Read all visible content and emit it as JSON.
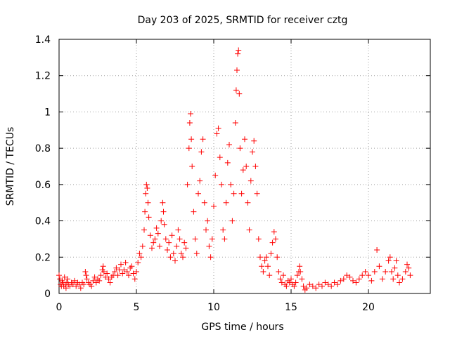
{
  "chart_data": {
    "type": "scatter",
    "title": "Day 203 of 2025, SRMTID for receiver cztg",
    "xlabel": "GPS time / hours",
    "ylabel": "SRMTID / TECUs",
    "xlim": [
      0,
      24
    ],
    "ylim": [
      0,
      1.4
    ],
    "xticks": [
      0,
      5,
      10,
      15,
      20
    ],
    "xtick_labels": [
      "0",
      "5",
      "10",
      "15",
      "20"
    ],
    "yticks": [
      0,
      0.2,
      0.4,
      0.6,
      0.8,
      1.0,
      1.2,
      1.4
    ],
    "ytick_labels": [
      "0",
      "0.2",
      "0.4",
      "0.6",
      "0.8",
      "1",
      "1.2",
      "1.4"
    ],
    "grid": true,
    "marker": "+",
    "series": [
      {
        "name": "SRMTID",
        "color": "#ff0000",
        "points": [
          [
            0.0,
            0.1
          ],
          [
            0.05,
            0.08
          ],
          [
            0.1,
            0.05
          ],
          [
            0.15,
            0.04
          ],
          [
            0.2,
            0.07
          ],
          [
            0.25,
            0.06
          ],
          [
            0.3,
            0.04
          ],
          [
            0.35,
            0.09
          ],
          [
            0.4,
            0.05
          ],
          [
            0.45,
            0.03
          ],
          [
            0.5,
            0.06
          ],
          [
            0.55,
            0.08
          ],
          [
            0.6,
            0.05
          ],
          [
            0.7,
            0.04
          ],
          [
            0.8,
            0.06
          ],
          [
            0.9,
            0.05
          ],
          [
            1.0,
            0.07
          ],
          [
            1.1,
            0.04
          ],
          [
            1.2,
            0.06
          ],
          [
            1.3,
            0.05
          ],
          [
            1.4,
            0.03
          ],
          [
            1.5,
            0.06
          ],
          [
            1.6,
            0.05
          ],
          [
            1.7,
            0.12
          ],
          [
            1.75,
            0.1
          ],
          [
            1.8,
            0.08
          ],
          [
            1.9,
            0.06
          ],
          [
            2.0,
            0.05
          ],
          [
            2.1,
            0.04
          ],
          [
            2.2,
            0.07
          ],
          [
            2.3,
            0.09
          ],
          [
            2.4,
            0.06
          ],
          [
            2.5,
            0.08
          ],
          [
            2.6,
            0.07
          ],
          [
            2.7,
            0.1
          ],
          [
            2.8,
            0.13
          ],
          [
            2.85,
            0.15
          ],
          [
            2.9,
            0.12
          ],
          [
            3.0,
            0.09
          ],
          [
            3.1,
            0.11
          ],
          [
            3.2,
            0.08
          ],
          [
            3.3,
            0.06
          ],
          [
            3.4,
            0.09
          ],
          [
            3.5,
            0.1
          ],
          [
            3.6,
            0.12
          ],
          [
            3.7,
            0.14
          ],
          [
            3.8,
            0.1
          ],
          [
            3.9,
            0.13
          ],
          [
            4.0,
            0.16
          ],
          [
            4.1,
            0.11
          ],
          [
            4.2,
            0.13
          ],
          [
            4.3,
            0.17
          ],
          [
            4.4,
            0.12
          ],
          [
            4.5,
            0.1
          ],
          [
            4.6,
            0.14
          ],
          [
            4.7,
            0.15
          ],
          [
            4.8,
            0.11
          ],
          [
            4.9,
            0.08
          ],
          [
            5.0,
            0.12
          ],
          [
            5.1,
            0.17
          ],
          [
            5.2,
            0.22
          ],
          [
            5.3,
            0.2
          ],
          [
            5.4,
            0.26
          ],
          [
            5.5,
            0.35
          ],
          [
            5.55,
            0.45
          ],
          [
            5.6,
            0.55
          ],
          [
            5.65,
            0.6
          ],
          [
            5.7,
            0.58
          ],
          [
            5.75,
            0.5
          ],
          [
            5.8,
            0.42
          ],
          [
            5.9,
            0.32
          ],
          [
            6.0,
            0.25
          ],
          [
            6.1,
            0.28
          ],
          [
            6.2,
            0.3
          ],
          [
            6.3,
            0.36
          ],
          [
            6.4,
            0.33
          ],
          [
            6.5,
            0.26
          ],
          [
            6.6,
            0.4
          ],
          [
            6.7,
            0.5
          ],
          [
            6.75,
            0.45
          ],
          [
            6.8,
            0.38
          ],
          [
            6.9,
            0.3
          ],
          [
            7.0,
            0.24
          ],
          [
            7.1,
            0.28
          ],
          [
            7.2,
            0.2
          ],
          [
            7.3,
            0.32
          ],
          [
            7.4,
            0.22
          ],
          [
            7.5,
            0.18
          ],
          [
            7.6,
            0.26
          ],
          [
            7.7,
            0.35
          ],
          [
            7.8,
            0.3
          ],
          [
            7.9,
            0.22
          ],
          [
            8.0,
            0.2
          ],
          [
            8.1,
            0.28
          ],
          [
            8.2,
            0.25
          ],
          [
            8.3,
            0.6
          ],
          [
            8.4,
            0.8
          ],
          [
            8.45,
            0.94
          ],
          [
            8.5,
            0.99
          ],
          [
            8.55,
            0.85
          ],
          [
            8.6,
            0.7
          ],
          [
            8.7,
            0.45
          ],
          [
            8.8,
            0.3
          ],
          [
            8.9,
            0.22
          ],
          [
            9.0,
            0.55
          ],
          [
            9.1,
            0.62
          ],
          [
            9.2,
            0.78
          ],
          [
            9.3,
            0.85
          ],
          [
            9.4,
            0.5
          ],
          [
            9.5,
            0.35
          ],
          [
            9.6,
            0.4
          ],
          [
            9.7,
            0.26
          ],
          [
            9.8,
            0.2
          ],
          [
            9.9,
            0.3
          ],
          [
            10.0,
            0.48
          ],
          [
            10.1,
            0.65
          ],
          [
            10.2,
            0.88
          ],
          [
            10.3,
            0.91
          ],
          [
            10.4,
            0.75
          ],
          [
            10.5,
            0.6
          ],
          [
            10.6,
            0.35
          ],
          [
            10.7,
            0.3
          ],
          [
            10.8,
            0.5
          ],
          [
            10.9,
            0.72
          ],
          [
            11.0,
            0.82
          ],
          [
            11.1,
            0.6
          ],
          [
            11.2,
            0.4
          ],
          [
            11.3,
            0.55
          ],
          [
            11.4,
            0.94
          ],
          [
            11.45,
            1.12
          ],
          [
            11.5,
            1.23
          ],
          [
            11.55,
            1.32
          ],
          [
            11.6,
            1.34
          ],
          [
            11.65,
            1.1
          ],
          [
            11.7,
            0.8
          ],
          [
            11.8,
            0.55
          ],
          [
            11.9,
            0.68
          ],
          [
            12.0,
            0.85
          ],
          [
            12.1,
            0.7
          ],
          [
            12.2,
            0.5
          ],
          [
            12.3,
            0.35
          ],
          [
            12.4,
            0.62
          ],
          [
            12.5,
            0.78
          ],
          [
            12.6,
            0.84
          ],
          [
            12.7,
            0.7
          ],
          [
            12.8,
            0.55
          ],
          [
            12.9,
            0.3
          ],
          [
            13.0,
            0.2
          ],
          [
            13.1,
            0.15
          ],
          [
            13.2,
            0.12
          ],
          [
            13.3,
            0.18
          ],
          [
            13.4,
            0.2
          ],
          [
            13.5,
            0.15
          ],
          [
            13.6,
            0.1
          ],
          [
            13.7,
            0.22
          ],
          [
            13.8,
            0.28
          ],
          [
            13.9,
            0.34
          ],
          [
            14.0,
            0.3
          ],
          [
            14.1,
            0.2
          ],
          [
            14.2,
            0.12
          ],
          [
            14.3,
            0.08
          ],
          [
            14.4,
            0.06
          ],
          [
            14.5,
            0.1
          ],
          [
            14.6,
            0.05
          ],
          [
            14.7,
            0.04
          ],
          [
            14.8,
            0.07
          ],
          [
            14.9,
            0.06
          ],
          [
            15.0,
            0.08
          ],
          [
            15.1,
            0.05
          ],
          [
            15.2,
            0.04
          ],
          [
            15.3,
            0.06
          ],
          [
            15.4,
            0.1
          ],
          [
            15.5,
            0.12
          ],
          [
            15.55,
            0.15
          ],
          [
            15.6,
            0.12
          ],
          [
            15.7,
            0.08
          ],
          [
            15.8,
            0.04
          ],
          [
            15.9,
            0.02
          ],
          [
            16.0,
            0.03
          ],
          [
            16.2,
            0.05
          ],
          [
            16.4,
            0.04
          ],
          [
            16.6,
            0.03
          ],
          [
            16.8,
            0.05
          ],
          [
            17.0,
            0.04
          ],
          [
            17.2,
            0.06
          ],
          [
            17.4,
            0.05
          ],
          [
            17.6,
            0.04
          ],
          [
            17.8,
            0.06
          ],
          [
            18.0,
            0.05
          ],
          [
            18.2,
            0.07
          ],
          [
            18.4,
            0.08
          ],
          [
            18.6,
            0.1
          ],
          [
            18.8,
            0.09
          ],
          [
            19.0,
            0.07
          ],
          [
            19.2,
            0.06
          ],
          [
            19.4,
            0.08
          ],
          [
            19.6,
            0.1
          ],
          [
            19.8,
            0.12
          ],
          [
            20.0,
            0.1
          ],
          [
            20.2,
            0.07
          ],
          [
            20.4,
            0.12
          ],
          [
            20.55,
            0.24
          ],
          [
            20.7,
            0.15
          ],
          [
            20.9,
            0.08
          ],
          [
            21.1,
            0.12
          ],
          [
            21.3,
            0.18
          ],
          [
            21.4,
            0.2
          ],
          [
            21.5,
            0.12
          ],
          [
            21.6,
            0.08
          ],
          [
            21.7,
            0.14
          ],
          [
            21.8,
            0.18
          ],
          [
            21.9,
            0.1
          ],
          [
            22.0,
            0.06
          ],
          [
            22.2,
            0.08
          ],
          [
            22.4,
            0.12
          ],
          [
            22.5,
            0.16
          ],
          [
            22.6,
            0.14
          ],
          [
            22.7,
            0.1
          ]
        ]
      }
    ]
  }
}
